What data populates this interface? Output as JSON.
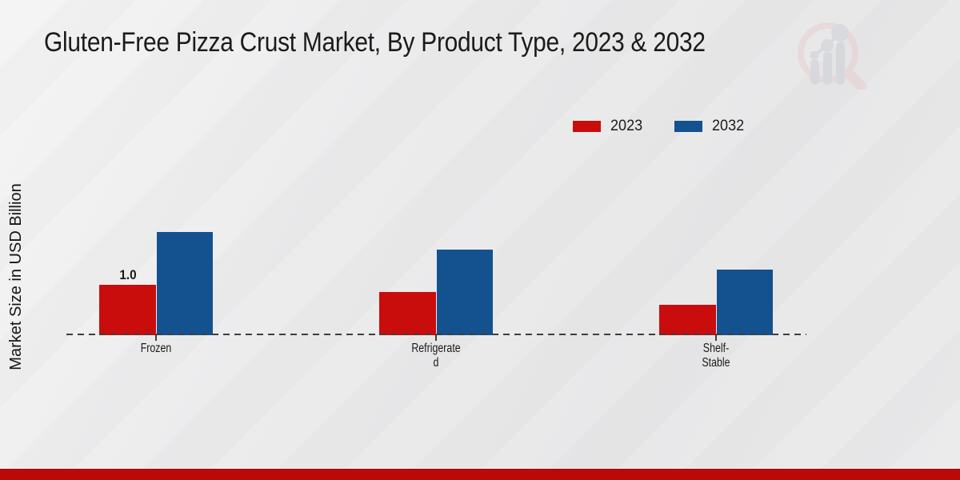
{
  "page": {
    "title": "Gluten-Free Pizza Crust Market, By Product Type, 2023 & 2032",
    "footer_color": "#bd0808",
    "watermark_icon": "market-research-future-logo"
  },
  "chart_data": {
    "type": "bar",
    "title": "Gluten-Free Pizza Crust Market, By Product Type, 2023 & 2032",
    "ylabel": "Market Size in USD Billion",
    "xlabel": "",
    "categories": [
      "Frozen",
      "Refrigerated",
      "Shelf-Stable"
    ],
    "category_display_lines": [
      [
        "Frozen"
      ],
      [
        "Refrigerate",
        "d"
      ],
      [
        "Shelf-",
        "Stable"
      ]
    ],
    "series": [
      {
        "name": "2023",
        "color": "#c90d0d",
        "values": [
          1.0,
          0.85,
          0.6
        ]
      },
      {
        "name": "2032",
        "color": "#14518f",
        "values": [
          2.05,
          1.7,
          1.3
        ]
      }
    ],
    "annotations": [
      {
        "category_index": 0,
        "series_index": 0,
        "text": "1.0"
      }
    ],
    "ylim": [
      0,
      4.4
    ],
    "grid": false,
    "legend_position": "upper-right",
    "baseline_style": "dashed",
    "axis_colors": {
      "baseline": "#3e3e3e"
    }
  }
}
